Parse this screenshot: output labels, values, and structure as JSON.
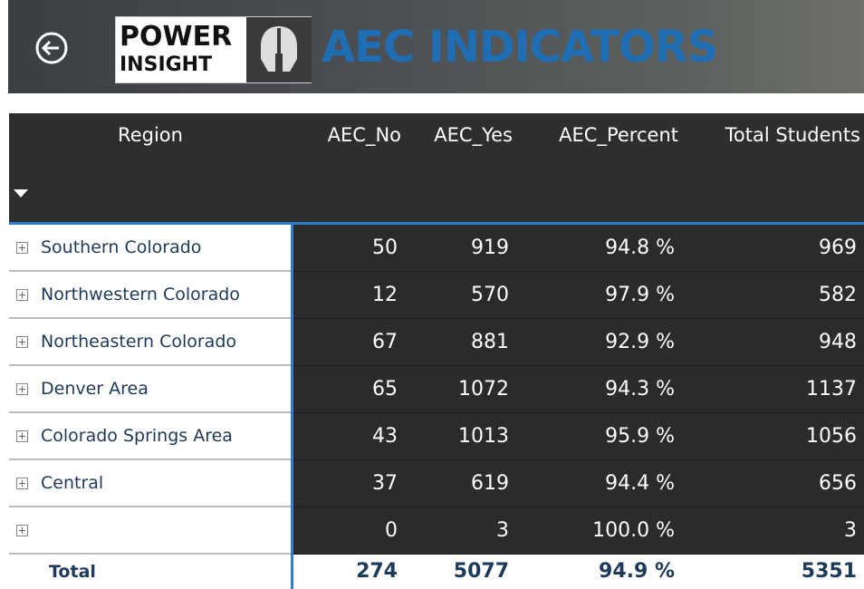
{
  "header": {
    "logo_top": "POWER",
    "logo_bottom": "INSIGHT",
    "title": "AEC INDICATORS"
  },
  "table": {
    "columns": [
      "Region",
      "AEC_No",
      "AEC_Yes",
      "AEC_Percent",
      "Total Students"
    ],
    "rows": [
      [
        "Southern Colorado",
        "50",
        "919",
        "94.8 %",
        "969"
      ],
      [
        "Northwestern Colorado",
        "12",
        "570",
        "97.9 %",
        "582"
      ],
      [
        "Northeastern Colorado",
        "67",
        "881",
        "92.9 %",
        "948"
      ],
      [
        "Denver Area",
        "65",
        "1072",
        "94.3 %",
        "1137"
      ],
      [
        "Colorado Springs Area",
        "43",
        "1013",
        "95.9 %",
        "1056"
      ],
      [
        "Central",
        "37",
        "619",
        "94.4 %",
        "656"
      ],
      [
        null,
        "0",
        "3",
        "100.0 %",
        "3"
      ]
    ],
    "total": [
      "Total",
      "274",
      "5077",
      "94.9 %",
      "5351"
    ]
  }
}
